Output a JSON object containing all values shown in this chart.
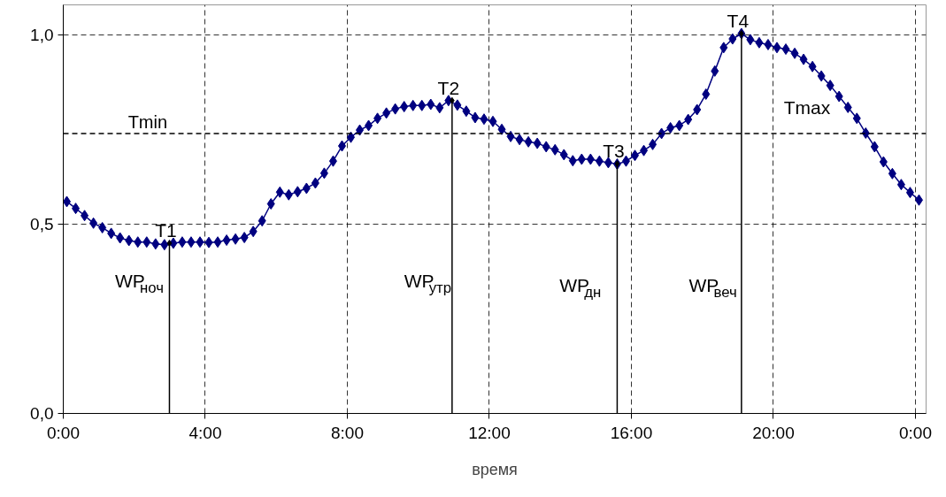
{
  "chart_data": {
    "type": "line",
    "xlabel": "время",
    "xlim": [
      0,
      24.3
    ],
    "ylim": [
      0,
      1.08
    ],
    "xticks": [
      {
        "value": 0,
        "label": "0:00"
      },
      {
        "value": 4,
        "label": "4:00"
      },
      {
        "value": 8,
        "label": "8:00"
      },
      {
        "value": 12,
        "label": "12:00"
      },
      {
        "value": 16,
        "label": "16:00"
      },
      {
        "value": 20,
        "label": "20:00"
      },
      {
        "value": 24,
        "label": "0:00"
      }
    ],
    "yticks": [
      {
        "value": 0,
        "label": "0,0"
      },
      {
        "value": 0.5,
        "label": "0,5"
      },
      {
        "value": 1,
        "label": "1,0"
      }
    ],
    "grid": true,
    "marker": "diamond",
    "line_style": "solid",
    "x": [
      0.1,
      0.35,
      0.6,
      0.85,
      1.1,
      1.35,
      1.6,
      1.85,
      2.1,
      2.35,
      2.6,
      2.85,
      3.1,
      3.35,
      3.6,
      3.85,
      4.1,
      4.35,
      4.6,
      4.85,
      5.1,
      5.35,
      5.6,
      5.85,
      6.1,
      6.35,
      6.6,
      6.85,
      7.1,
      7.35,
      7.6,
      7.85,
      8.1,
      8.35,
      8.6,
      8.85,
      9.1,
      9.35,
      9.6,
      9.85,
      10.1,
      10.35,
      10.6,
      10.85,
      11.1,
      11.35,
      11.6,
      11.85,
      12.1,
      12.35,
      12.6,
      12.85,
      13.1,
      13.35,
      13.6,
      13.85,
      14.1,
      14.35,
      14.6,
      14.85,
      15.1,
      15.35,
      15.6,
      15.85,
      16.1,
      16.35,
      16.6,
      16.85,
      17.1,
      17.35,
      17.6,
      17.85,
      18.1,
      18.35,
      18.6,
      18.85,
      19.1,
      19.35,
      19.6,
      19.85,
      20.1,
      20.35,
      20.6,
      20.85,
      21.1,
      21.35,
      21.6,
      21.85,
      22.1,
      22.35,
      22.6,
      22.85,
      23.1,
      23.35,
      23.6,
      23.85,
      24.1
    ],
    "series": [
      {
        "color": "#000080",
        "values": [
          0.56,
          0.542,
          0.523,
          0.503,
          0.491,
          0.476,
          0.464,
          0.457,
          0.453,
          0.453,
          0.448,
          0.446,
          0.45,
          0.453,
          0.453,
          0.453,
          0.452,
          0.453,
          0.458,
          0.461,
          0.465,
          0.481,
          0.509,
          0.554,
          0.585,
          0.578,
          0.586,
          0.595,
          0.609,
          0.635,
          0.667,
          0.707,
          0.73,
          0.749,
          0.761,
          0.78,
          0.794,
          0.805,
          0.811,
          0.814,
          0.814,
          0.817,
          0.808,
          0.827,
          0.815,
          0.799,
          0.782,
          0.778,
          0.772,
          0.751,
          0.732,
          0.724,
          0.718,
          0.714,
          0.705,
          0.697,
          0.684,
          0.668,
          0.672,
          0.672,
          0.667,
          0.663,
          0.659,
          0.667,
          0.682,
          0.695,
          0.711,
          0.74,
          0.755,
          0.761,
          0.777,
          0.803,
          0.844,
          0.905,
          0.967,
          0.99,
          1.004,
          0.988,
          0.98,
          0.975,
          0.967,
          0.963,
          0.952,
          0.936,
          0.917,
          0.892,
          0.867,
          0.838,
          0.809,
          0.78,
          0.741,
          0.705,
          0.665,
          0.634,
          0.605,
          0.584,
          0.564
        ]
      },
      {
        "type": "lollipop",
        "color": "#000000",
        "x": [
          2.99,
          10.95,
          15.6,
          19.1
        ],
        "values": [
          0.45,
          0.827,
          0.66,
          1.004
        ]
      }
    ],
    "ref_lines": [
      {
        "axis": "y",
        "value": 0.74,
        "label": "Tmin",
        "color": "#000000",
        "line_style": "dashed"
      }
    ],
    "annotations": [
      {
        "text": "T1",
        "x": 2.99,
        "y": 0.45
      },
      {
        "text": "T2",
        "x": 10.95,
        "y": 0.827
      },
      {
        "text": "T3",
        "x": 15.6,
        "y": 0.66
      },
      {
        "text": "T4",
        "x": 19.1,
        "y": 1.004
      },
      "Tmax",
      "WP$_{ноч}$",
      "WP$_{утр}$",
      "WP$_{дн}$",
      "WP$_{веч}$"
    ]
  }
}
